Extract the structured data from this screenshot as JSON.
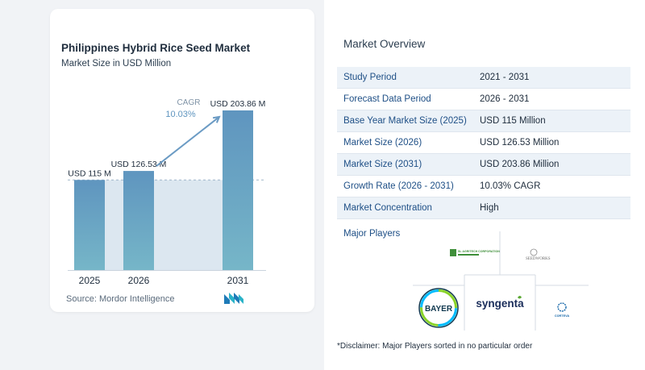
{
  "chart_card": {
    "title": "Philippines Hybrid Rice Seed Market",
    "subtitle": "Market Size in USD Million",
    "source": "Source:  Mordor Intelligence"
  },
  "chart_data": {
    "type": "bar",
    "categories": [
      "2025",
      "2026",
      "2031"
    ],
    "values": [
      115,
      126.53,
      203.86
    ],
    "data_labels": [
      "USD 115 M",
      "USD 126.53 M",
      "USD 203.86 M"
    ],
    "cagr_label": "CAGR",
    "cagr_value": "10.03%",
    "ylim": [
      0,
      210
    ],
    "colors": {
      "bar": "#5f95bf",
      "bar_bottom": "#76b6c8",
      "band": "#dce7f0",
      "arrow": "#6b9bc4",
      "cagr": "#5f95bf"
    }
  },
  "overview": {
    "title": "Market Overview",
    "rows": [
      {
        "label": "Study Period",
        "value": "2021 - 2031"
      },
      {
        "label": "Forecast Data Period",
        "value": "2026 - 2031"
      },
      {
        "label": "Base Year Market Size (2025)",
        "value": "USD 115 Million"
      },
      {
        "label": "Market Size (2026)",
        "value": "USD 126.53 Million"
      },
      {
        "label": "Market Size (2031)",
        "value": "USD 203.86 Million"
      },
      {
        "label": "Growth Rate (2026 - 2031)",
        "value": "10.03% CAGR"
      },
      {
        "label": "Market Concentration",
        "value": "High"
      }
    ],
    "players_title": "Major Players",
    "players": {
      "sl_agritech": "SL AGRITECH CORPORATION",
      "seedworks": "SEEDWORKS",
      "bayer_top": "BAYER",
      "bayer_side": "BAYER",
      "syngenta": "syngenta",
      "corteva": "CORTEVA"
    },
    "disclaimer": "*Disclaimer: Major Players sorted in no particular order"
  }
}
